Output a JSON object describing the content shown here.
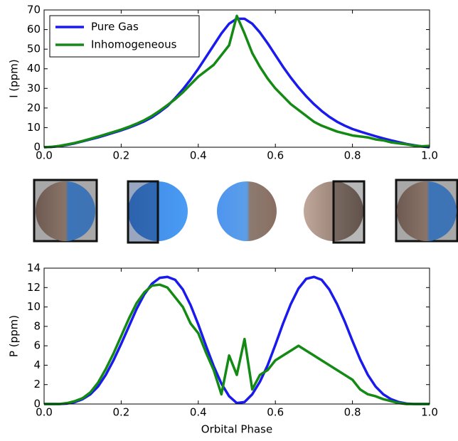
{
  "chart_data": [
    {
      "type": "line",
      "ylabel": "I (ppm)",
      "xlim": [
        0,
        1
      ],
      "ylim": [
        0,
        70
      ],
      "xticks": [
        {
          "value": 0,
          "label": "0.0"
        },
        {
          "value": 0.2,
          "label": "0.2"
        },
        {
          "value": 0.4,
          "label": "0.4"
        },
        {
          "value": 0.6,
          "label": "0.6"
        },
        {
          "value": 0.8,
          "label": "0.8"
        },
        {
          "value": 1,
          "label": "1.0"
        }
      ],
      "yticks": [
        0,
        10,
        20,
        30,
        40,
        50,
        60,
        70
      ],
      "legend": "upper left",
      "x": [
        0,
        0.02,
        0.04,
        0.06,
        0.08,
        0.1,
        0.12,
        0.14,
        0.16,
        0.18,
        0.2,
        0.22,
        0.24,
        0.26,
        0.28,
        0.3,
        0.32,
        0.34,
        0.36,
        0.38,
        0.4,
        0.42,
        0.44,
        0.46,
        0.48,
        0.5,
        0.52,
        0.54,
        0.56,
        0.58,
        0.6,
        0.62,
        0.64,
        0.66,
        0.68,
        0.7,
        0.72,
        0.74,
        0.76,
        0.78,
        0.8,
        0.82,
        0.84,
        0.86,
        0.88,
        0.9,
        0.92,
        0.94,
        0.96,
        0.98,
        1
      ],
      "series": [
        {
          "name": "Pure Gas",
          "color": "#1a1aee",
          "values": [
            0,
            0.2,
            0.6,
            1.2,
            2,
            3,
            4,
            5,
            6.2,
            7.4,
            8.6,
            10,
            11.5,
            13.2,
            15.3,
            18,
            21,
            25,
            29.5,
            34.5,
            40,
            46,
            52,
            58,
            63,
            65.5,
            65.5,
            63,
            58.5,
            53,
            47,
            41,
            35.5,
            30.5,
            26,
            22,
            18.5,
            15.5,
            13,
            11,
            9.3,
            8,
            6.8,
            5.6,
            4.5,
            3.5,
            2.6,
            1.7,
            1,
            0.4,
            0
          ]
        },
        {
          "name": "Inhomogeneous",
          "color": "#138a13",
          "values": [
            0,
            0.2,
            0.7,
            1.4,
            2.2,
            3.2,
            4.3,
            5.4,
            6.6,
            7.8,
            9,
            10.4,
            12,
            13.8,
            16,
            18.6,
            21.5,
            24.5,
            28,
            32,
            36,
            39,
            42,
            47,
            52,
            67,
            58,
            48,
            41,
            35,
            30,
            26,
            22,
            19,
            16,
            13,
            11,
            9.5,
            8,
            7,
            6,
            5.5,
            5,
            4,
            3.5,
            2.5,
            2,
            1.5,
            0.8,
            0.5,
            0.7
          ]
        }
      ]
    },
    {
      "type": "line",
      "ylabel": "P (ppm)",
      "xlabel": "Orbital Phase",
      "xlim": [
        0,
        1
      ],
      "ylim": [
        0,
        14
      ],
      "xticks": [
        {
          "value": 0,
          "label": "0.0"
        },
        {
          "value": 0.2,
          "label": "0.2"
        },
        {
          "value": 0.4,
          "label": "0.4"
        },
        {
          "value": 0.6,
          "label": "0.6"
        },
        {
          "value": 0.8,
          "label": "0.8"
        },
        {
          "value": 1,
          "label": "1.0"
        }
      ],
      "yticks": [
        0,
        2,
        4,
        6,
        8,
        10,
        12,
        14
      ],
      "x": [
        0,
        0.02,
        0.04,
        0.06,
        0.08,
        0.1,
        0.12,
        0.14,
        0.16,
        0.18,
        0.2,
        0.22,
        0.24,
        0.26,
        0.28,
        0.3,
        0.32,
        0.34,
        0.36,
        0.38,
        0.4,
        0.42,
        0.44,
        0.46,
        0.48,
        0.5,
        0.52,
        0.54,
        0.56,
        0.58,
        0.6,
        0.62,
        0.64,
        0.66,
        0.68,
        0.7,
        0.72,
        0.74,
        0.76,
        0.78,
        0.8,
        0.82,
        0.84,
        0.86,
        0.88,
        0.9,
        0.92,
        0.94,
        0.96,
        0.98,
        1
      ],
      "series": [
        {
          "name": "Pure Gas",
          "color": "#1a1aee",
          "values": [
            0,
            0,
            0,
            0.05,
            0.2,
            0.5,
            1,
            1.8,
            3,
            4.5,
            6.2,
            8,
            9.8,
            11.3,
            12.4,
            13,
            13.1,
            12.8,
            11.8,
            10.2,
            8.2,
            6,
            3.9,
            2.1,
            0.8,
            0.1,
            0.2,
            1,
            2.3,
            4,
            6.1,
            8.3,
            10.3,
            11.9,
            12.9,
            13.1,
            12.8,
            11.8,
            10.3,
            8.5,
            6.5,
            4.6,
            3,
            1.8,
            1,
            0.5,
            0.2,
            0.05,
            0,
            0,
            0
          ]
        },
        {
          "name": "Inhomogeneous",
          "color": "#138a13",
          "values": [
            0,
            0,
            0,
            0.1,
            0.3,
            0.6,
            1.2,
            2.2,
            3.6,
            5.2,
            7,
            8.8,
            10.4,
            11.5,
            12.2,
            12.3,
            12,
            11,
            10,
            8.3,
            7.3,
            5.3,
            3.5,
            1,
            5,
            3,
            6.7,
            1.5,
            3,
            3.5,
            4.5,
            5,
            5.5,
            6,
            5.5,
            5,
            4.5,
            4,
            3.5,
            3,
            2.5,
            1.5,
            1,
            0.8,
            0.5,
            0.3,
            0.1,
            0,
            0,
            0,
            0
          ]
        }
      ]
    }
  ]
}
